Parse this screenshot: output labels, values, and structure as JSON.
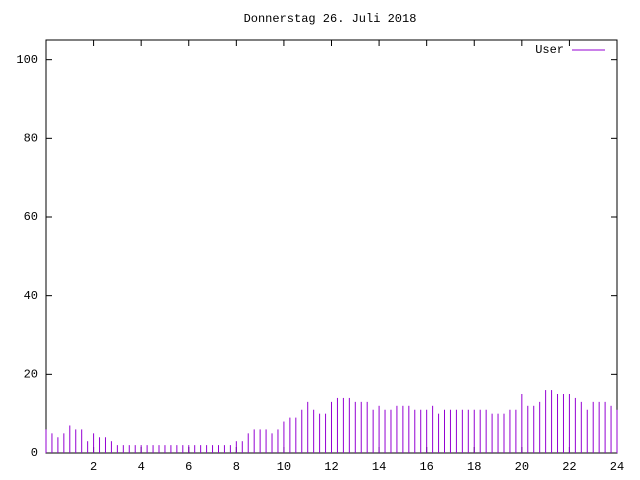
{
  "chart_data": {
    "type": "impulses",
    "title": "Donnerstag 26. Juli 2018",
    "x": [
      0,
      0.25,
      0.5,
      0.75,
      1,
      1.25,
      1.5,
      1.75,
      2,
      2.25,
      2.5,
      2.75,
      3,
      3.25,
      3.5,
      3.75,
      4,
      4.25,
      4.5,
      4.75,
      5,
      5.25,
      5.5,
      5.75,
      6,
      6.25,
      6.5,
      6.75,
      7,
      7.25,
      7.5,
      7.75,
      8,
      8.25,
      8.5,
      8.75,
      9,
      9.25,
      9.5,
      9.75,
      10,
      10.25,
      10.5,
      10.75,
      11,
      11.25,
      11.5,
      11.75,
      12,
      12.25,
      12.5,
      12.75,
      13,
      13.25,
      13.5,
      13.75,
      14,
      14.25,
      14.5,
      14.75,
      15,
      15.25,
      15.5,
      15.75,
      16,
      16.25,
      16.5,
      16.75,
      17,
      17.25,
      17.5,
      17.75,
      18,
      18.25,
      18.5,
      18.75,
      19,
      19.25,
      19.5,
      19.75,
      20,
      20.25,
      20.5,
      20.75,
      21,
      21.25,
      21.5,
      21.75,
      22,
      22.25,
      22.5,
      22.75,
      23,
      23.25,
      23.5,
      23.75,
      24
    ],
    "series": [
      {
        "name": "User",
        "color": "#9400d3",
        "values": [
          6,
          5,
          4,
          5,
          7,
          6,
          6,
          3,
          5,
          4,
          4,
          3,
          2,
          2,
          2,
          2,
          2,
          2,
          2,
          2,
          2,
          2,
          2,
          2,
          2,
          2,
          2,
          2,
          2,
          2,
          2,
          2,
          3,
          3,
          5,
          6,
          6,
          6,
          5,
          6,
          8,
          9,
          9,
          11,
          13,
          11,
          10,
          10,
          13,
          14,
          14,
          14,
          13,
          13,
          13,
          11,
          12,
          11,
          11,
          12,
          12,
          12,
          11,
          11,
          11,
          12,
          10,
          11,
          11,
          11,
          11,
          11,
          11,
          11,
          11,
          10,
          10,
          10,
          11,
          11,
          15,
          12,
          12,
          13,
          16,
          16,
          15,
          15,
          15,
          14,
          13,
          11,
          13,
          13,
          13,
          12,
          11
        ]
      }
    ],
    "xlim": [
      0,
      24
    ],
    "xticks": [
      2,
      4,
      6,
      8,
      10,
      12,
      14,
      16,
      18,
      20,
      22,
      24
    ],
    "ylim": [
      0,
      105
    ],
    "yticks": [
      0,
      20,
      40,
      60,
      80,
      100
    ],
    "legend": "top-right"
  }
}
